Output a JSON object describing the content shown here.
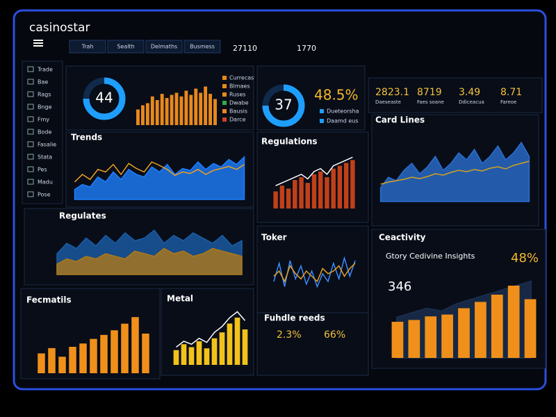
{
  "header": {
    "brand": "casinostar",
    "tabs": [
      "Trah",
      "Sealth",
      "Delmaths",
      "Busmess"
    ],
    "center": [
      "27110",
      "1770"
    ]
  },
  "sidebar": [
    "Trade",
    "Bae",
    "Rags",
    "Bnge",
    "Fmy",
    "Bode",
    "Fasalie",
    "Stata",
    "Pes",
    "Madu",
    "Pose"
  ],
  "panels": [
    {
      "gauge": "44",
      "legend": [
        {
          "name": "Currecas",
          "color": "#e8891c"
        },
        {
          "name": "Blmaes",
          "color": "#e8891c"
        },
        {
          "name": "Ruses",
          "color": "#e8891c"
        },
        {
          "name": "Dwabe",
          "color": "#2fae4a"
        },
        {
          "name": "Bausis",
          "color": "#e8891c"
        },
        {
          "name": "Darce",
          "color": "#d0402a"
        }
      ],
      "chart": {
        "ylim": [
          0,
          100
        ],
        "series": [
          {
            "type": "bar",
            "color": "#e8891c",
            "values": [
              30,
              38,
              42,
              55,
              48,
              60,
              52,
              58,
              62,
              55,
              66,
              58,
              70,
              62,
              74,
              60,
              50
            ]
          }
        ]
      }
    },
    {
      "title": "Trends",
      "chart": {
        "ylim": [
          0,
          100
        ],
        "series": [
          {
            "type": "area",
            "color": "#1e7fff",
            "values": [
              20,
              30,
              25,
              45,
              35,
              55,
              40,
              60,
              50,
              45,
              65,
              55,
              70,
              50,
              62,
              58,
              75,
              60,
              72,
              65,
              80,
              70,
              85
            ]
          },
          {
            "type": "line",
            "color": "#f0a020",
            "values": [
              35,
              50,
              40,
              60,
              55,
              70,
              50,
              72,
              62,
              55,
              75,
              68,
              60,
              48,
              55,
              52,
              60,
              50,
              58,
              62,
              66,
              60,
              70
            ]
          }
        ]
      }
    },
    {
      "gauge": "37",
      "kpi": "48.5%",
      "legend": [
        {
          "name": "Dueteorsha",
          "color": "#1e9fff"
        },
        {
          "name": "Daamd eus",
          "color": "#1e9fff"
        }
      ]
    },
    {
      "title": "Regulations",
      "chart": {
        "ylim": [
          0,
          100
        ],
        "series": [
          {
            "type": "bar",
            "color": "#c0401a",
            "values": [
              30,
              40,
              35,
              50,
              55,
              45,
              60,
              65,
              55,
              70,
              75,
              80,
              85
            ]
          },
          {
            "type": "line",
            "color": "#ffffff",
            "values": [
              40,
              45,
              50,
              55,
              60,
              52,
              65,
              70,
              60,
              75,
              80,
              85,
              90
            ]
          }
        ]
      }
    },
    {
      "kpis": [
        "2823.1",
        "8719",
        "3.49",
        "8.71"
      ],
      "kpi_labels": [
        "Daeseaste",
        "Faes soane",
        "Ddiceacua",
        "Fareoe"
      ]
    },
    {
      "title": "Card Lines",
      "chart": {
        "ylim": [
          0,
          100
        ],
        "series": [
          {
            "type": "area",
            "color": "#2a6fd0",
            "values": [
              20,
              35,
              30,
              45,
              55,
              40,
              50,
              65,
              45,
              55,
              70,
              60,
              75,
              55,
              65,
              80,
              60,
              70,
              85,
              65
            ]
          },
          {
            "type": "line",
            "color": "#d4a020",
            "values": [
              25,
              28,
              30,
              32,
              35,
              33,
              36,
              40,
              38,
              42,
              45,
              43,
              46,
              44,
              48,
              50,
              47,
              52,
              55,
              58
            ]
          }
        ]
      }
    },
    {
      "title": "Regulates",
      "chart": {
        "ylim": [
          0,
          100
        ],
        "series": [
          {
            "type": "area",
            "color": "#1a5ea8",
            "values": [
              40,
              60,
              50,
              70,
              55,
              75,
              60,
              80,
              65,
              70,
              85,
              60,
              75,
              65,
              80,
              70,
              60,
              75,
              55,
              65
            ]
          },
          {
            "type": "area",
            "color": "#b07818",
            "values": [
              20,
              30,
              25,
              35,
              30,
              40,
              35,
              30,
              45,
              40,
              35,
              50,
              40,
              45,
              35,
              40,
              50,
              45,
              40,
              35
            ]
          }
        ]
      }
    },
    {
      "title": "Toker",
      "chart": {
        "ylim": [
          0,
          100
        ],
        "series": [
          {
            "type": "line",
            "color": "#3a8cff",
            "values": [
              40,
              75,
              30,
              80,
              45,
              70,
              35,
              60,
              30,
              55,
              40,
              75,
              45,
              85,
              50,
              80
            ]
          },
          {
            "type": "line",
            "color": "#e8a020",
            "values": [
              50,
              60,
              40,
              70,
              55,
              45,
              60,
              50,
              40,
              65,
              55,
              60,
              70,
              50,
              65,
              75
            ]
          }
        ]
      }
    },
    {
      "title": "Ceactivity",
      "subtitle": "Gtory Cedivine Insights",
      "kpi": "48%",
      "kpi2": "346",
      "chart": {
        "ylim": [
          0,
          100
        ],
        "series": [
          {
            "type": "area",
            "color": "#1c3050",
            "values": [
              45,
              50,
              55,
              52,
              60,
              65,
              70,
              75,
              80,
              85
            ]
          },
          {
            "type": "bar",
            "color": "#f0901a",
            "values": [
              40,
              42,
              46,
              48,
              55,
              62,
              70,
              80,
              65
            ]
          }
        ]
      }
    },
    {
      "title": "Fecmatils",
      "chart": {
        "ylim": [
          0,
          100
        ],
        "series": [
          {
            "type": "bar",
            "color": "#f0901a",
            "values": [
              30,
              38,
              25,
              40,
              45,
              52,
              58,
              65,
              75,
              85,
              60
            ]
          }
        ]
      }
    },
    {
      "title": "Metal",
      "chart": {
        "ylim": [
          0,
          100
        ],
        "series": [
          {
            "type": "bar",
            "color": "#f2c21a",
            "values": [
              25,
              35,
              30,
              40,
              28,
              45,
              55,
              70,
              80,
              60
            ]
          },
          {
            "type": "line",
            "color": "#ffffff",
            "values": [
              30,
              40,
              35,
              45,
              38,
              55,
              65,
              80,
              90,
              75
            ]
          }
        ]
      }
    },
    {
      "title": "Fuhdle reeds",
      "kpis": [
        "2.3%",
        "66%"
      ]
    }
  ]
}
